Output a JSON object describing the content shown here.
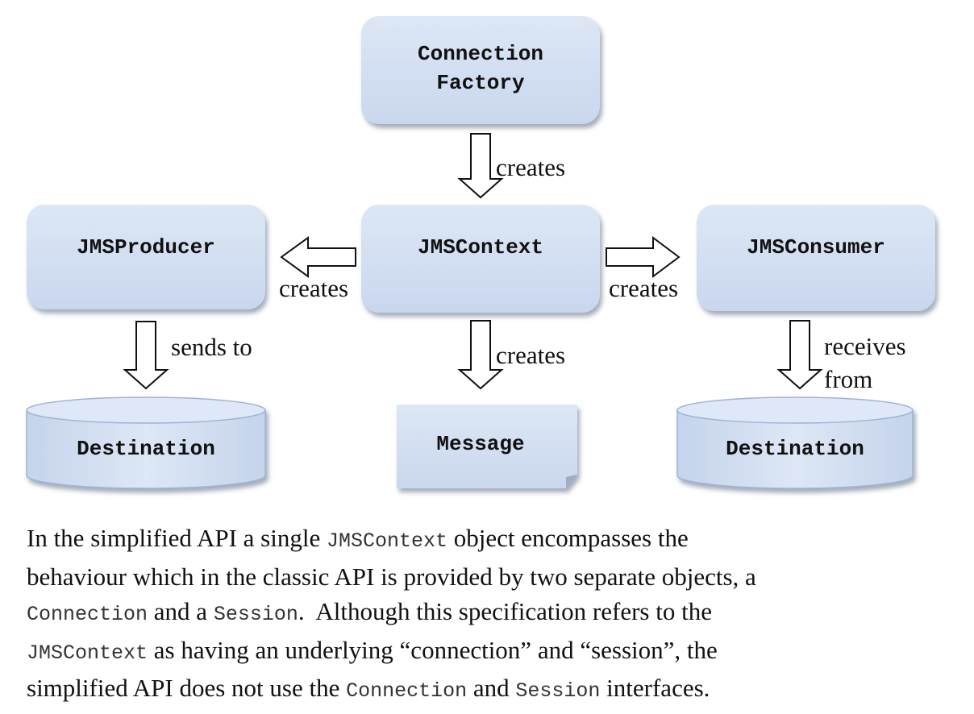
{
  "nodes": {
    "connection_factory": {
      "line1": "Connection",
      "line2": "Factory"
    },
    "jms_context": "JMSContext",
    "jms_producer": "JMSProducer",
    "jms_consumer": "JMSConsumer",
    "message": "Message",
    "destination_left": "Destination",
    "destination_right": "Destination"
  },
  "edges": {
    "factory_to_context": "creates",
    "context_to_producer": "creates",
    "context_to_consumer": "creates",
    "context_to_message": "creates",
    "producer_to_destination": "sends to",
    "consumer_from_destination": {
      "line1": "receives",
      "line2": "from"
    }
  },
  "caption": {
    "l1_a": "In the simplified API a single ",
    "l1_code": "JMSContext",
    "l1_b": " object encompasses the",
    "l2": "behaviour which in the classic API is provided by two separate objects, a",
    "l3_code1": "Connection",
    "l3_a": " and a ",
    "l3_code2": "Session",
    "l3_b": ".  Although this specification refers to the",
    "l4_code": "JMSContext",
    "l4_a": " as having an underlying “connection” and “session”, the",
    "l5_a": "simplified API does not use the ",
    "l5_code1": "Connection",
    "l5_b": " and ",
    "l5_code2": "Session",
    "l5_c": " interfaces."
  },
  "colors": {
    "box_fill": "#d4e0f2",
    "box_shadow": "#9aa6b8",
    "arrow_stroke": "#111111"
  }
}
